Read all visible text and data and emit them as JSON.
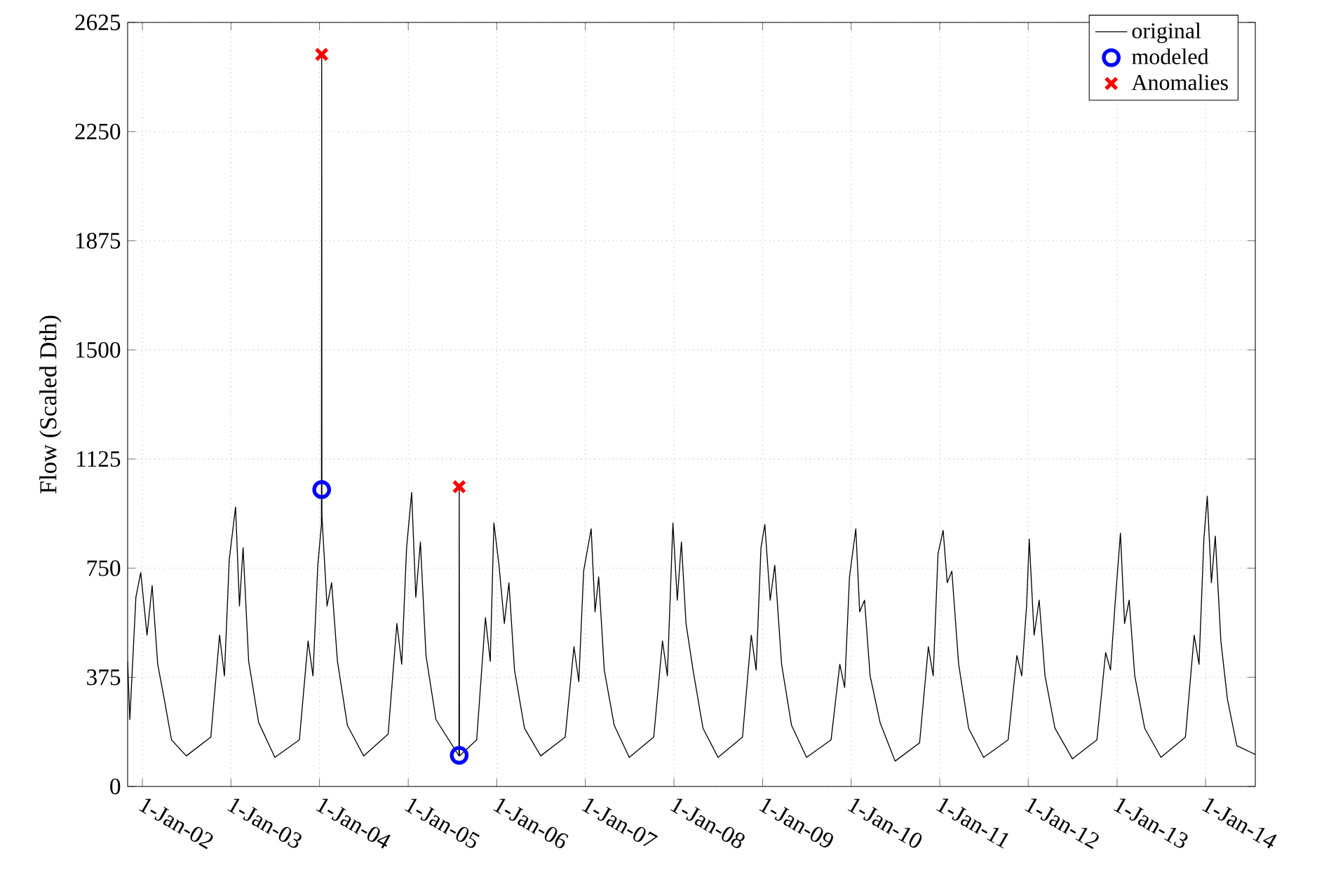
{
  "chart_data": {
    "type": "line",
    "ylabel": "Flow (Scaled Dth)",
    "xlim": [
      "2001-11-01",
      "2014-07-25"
    ],
    "xticks": [
      {
        "value": "2002-01-01",
        "label": "1-Jan-02"
      },
      {
        "value": "2003-01-01",
        "label": "1-Jan-03"
      },
      {
        "value": "2004-01-01",
        "label": "1-Jan-04"
      },
      {
        "value": "2005-01-01",
        "label": "1-Jan-05"
      },
      {
        "value": "2006-01-01",
        "label": "1-Jan-06"
      },
      {
        "value": "2007-01-01",
        "label": "1-Jan-07"
      },
      {
        "value": "2008-01-01",
        "label": "1-Jan-08"
      },
      {
        "value": "2009-01-01",
        "label": "1-Jan-09"
      },
      {
        "value": "2010-01-01",
        "label": "1-Jan-10"
      },
      {
        "value": "2011-01-01",
        "label": "1-Jan-11"
      },
      {
        "value": "2012-01-01",
        "label": "1-Jan-12"
      },
      {
        "value": "2013-01-01",
        "label": "1-Jan-13"
      },
      {
        "value": "2014-01-01",
        "label": "1-Jan-14"
      }
    ],
    "ylim": [
      0,
      2625
    ],
    "yticks": [
      0,
      375,
      750,
      1125,
      1500,
      1875,
      2250,
      2625
    ],
    "grid": true,
    "legend": "top right",
    "line_style": "solid",
    "series": [
      {
        "name": "original",
        "color": "#000000",
        "marker": "none",
        "x": [
          "2001-11-01",
          "2001-11-10",
          "2001-12-05",
          "2001-12-25",
          "2002-01-20",
          "2002-02-10",
          "2002-03-05",
          "2002-04-01",
          "2002-05-01",
          "2002-07-01",
          "2002-10-10",
          "2002-11-15",
          "2002-12-05",
          "2002-12-25",
          "2003-01-20",
          "2003-02-05",
          "2003-02-20",
          "2003-03-15",
          "2003-04-25",
          "2003-07-01",
          "2003-10-10",
          "2003-11-15",
          "2003-12-05",
          "2003-12-25",
          "2004-01-09",
          "2004-01-10",
          "2004-01-11",
          "2004-02-01",
          "2004-02-20",
          "2004-03-15",
          "2004-04-25",
          "2004-07-01",
          "2004-10-10",
          "2004-11-15",
          "2004-12-05",
          "2004-12-25",
          "2005-01-15",
          "2005-02-01",
          "2005-02-20",
          "2005-03-15",
          "2005-04-25",
          "2005-07-29",
          "2005-07-30",
          "2005-07-31",
          "2005-10-10",
          "2005-11-15",
          "2005-12-05",
          "2005-12-20",
          "2006-01-10",
          "2006-02-01",
          "2006-02-20",
          "2006-03-15",
          "2006-04-25",
          "2006-07-01",
          "2006-10-10",
          "2006-11-15",
          "2006-12-05",
          "2006-12-25",
          "2007-01-25",
          "2007-02-10",
          "2007-02-25",
          "2007-03-20",
          "2007-04-30",
          "2007-07-01",
          "2007-10-10",
          "2007-11-15",
          "2007-12-05",
          "2007-12-28",
          "2008-01-15",
          "2008-02-01",
          "2008-02-20",
          "2008-03-20",
          "2008-04-30",
          "2008-07-01",
          "2008-10-10",
          "2008-11-15",
          "2008-12-05",
          "2008-12-25",
          "2009-01-10",
          "2009-02-01",
          "2009-02-20",
          "2009-03-20",
          "2009-04-30",
          "2009-07-01",
          "2009-10-10",
          "2009-11-15",
          "2009-12-05",
          "2009-12-25",
          "2010-01-20",
          "2010-02-05",
          "2010-02-25",
          "2010-03-20",
          "2010-04-30",
          "2010-07-01",
          "2010-10-10",
          "2010-11-15",
          "2010-12-05",
          "2010-12-25",
          "2011-01-15",
          "2011-02-01",
          "2011-02-20",
          "2011-03-20",
          "2011-04-30",
          "2011-07-01",
          "2011-10-10",
          "2011-11-15",
          "2011-12-05",
          "2011-12-25",
          "2012-01-05",
          "2012-01-25",
          "2012-02-15",
          "2012-03-10",
          "2012-04-20",
          "2012-07-01",
          "2012-10-10",
          "2012-11-15",
          "2012-12-05",
          "2012-12-25",
          "2013-01-15",
          "2013-02-01",
          "2013-02-20",
          "2013-03-15",
          "2013-04-25",
          "2013-07-01",
          "2013-10-10",
          "2013-11-15",
          "2013-12-05",
          "2013-12-25",
          "2014-01-08",
          "2014-01-25",
          "2014-02-10",
          "2014-03-05",
          "2014-04-01",
          "2014-05-10",
          "2014-07-25"
        ],
        "values": [
          430,
          230,
          650,
          735,
          520,
          690,
          420,
          300,
          160,
          105,
          170,
          520,
          380,
          780,
          960,
          620,
          820,
          430,
          220,
          100,
          160,
          500,
          380,
          760,
          900,
          2515,
          930,
          620,
          700,
          430,
          210,
          105,
          180,
          560,
          420,
          820,
          1010,
          650,
          840,
          450,
          230,
          105,
          1030,
          105,
          160,
          580,
          430,
          905,
          760,
          560,
          700,
          400,
          200,
          105,
          170,
          480,
          360,
          740,
          885,
          600,
          720,
          400,
          210,
          100,
          170,
          500,
          380,
          905,
          640,
          840,
          560,
          400,
          200,
          100,
          170,
          520,
          400,
          820,
          900,
          640,
          760,
          420,
          210,
          100,
          160,
          420,
          340,
          720,
          885,
          600,
          640,
          380,
          220,
          87,
          150,
          480,
          380,
          800,
          880,
          700,
          740,
          420,
          200,
          100,
          160,
          450,
          380,
          620,
          850,
          520,
          640,
          380,
          200,
          95,
          160,
          460,
          400,
          640,
          870,
          560,
          640,
          380,
          200,
          100,
          170,
          520,
          420,
          850,
          997,
          700,
          860,
          500,
          300,
          140,
          110
        ]
      },
      {
        "name": "modeled",
        "type": "scatter",
        "color": "#0000ff",
        "marker": "circle",
        "x": [
          "2004-01-10",
          "2005-07-30"
        ],
        "values": [
          1020,
          107
        ]
      },
      {
        "name": "Anomalies",
        "type": "scatter",
        "color": "#ff0000",
        "marker": "cross",
        "x": [
          "2004-01-10",
          "2005-07-30"
        ],
        "values": [
          2515,
          1030
        ]
      }
    ]
  }
}
